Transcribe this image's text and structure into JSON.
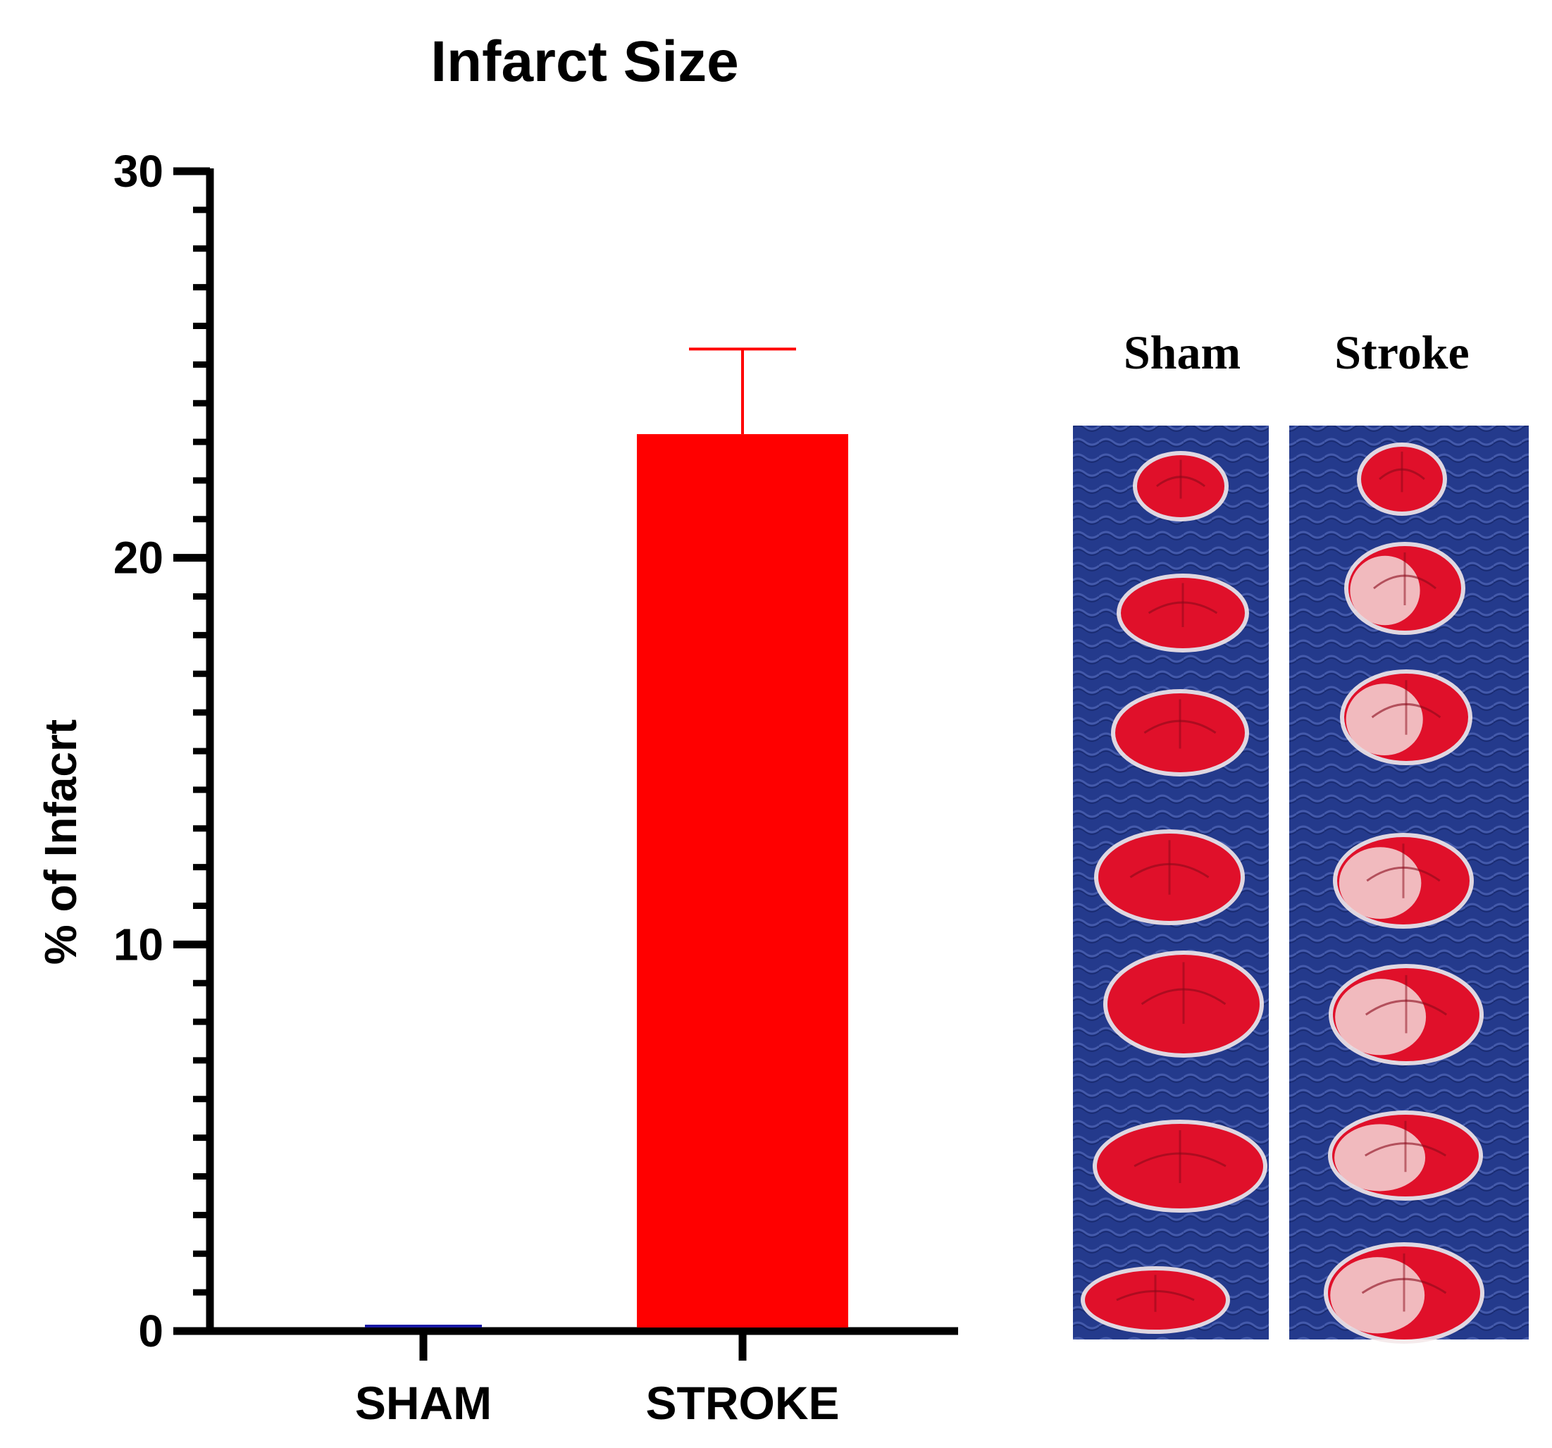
{
  "chart_data": {
    "type": "bar",
    "title": "Infarct Size",
    "xlabel": "",
    "ylabel": "% of Infacrt",
    "categories": [
      "SHAM",
      "STROKE"
    ],
    "values": [
      0,
      23.2
    ],
    "error_upper": [
      0,
      25.4
    ],
    "bar_colors": [
      "#1a1aa6",
      "#ff0000"
    ],
    "ylim": [
      0,
      30
    ],
    "yticks": [
      "0",
      "10",
      "20",
      "30"
    ],
    "minor_ticks_per_major": 10,
    "grid": false
  },
  "photos": {
    "panels": [
      {
        "label": "Sham",
        "slices": 7
      },
      {
        "label": "Stroke",
        "slices": 7
      }
    ],
    "background_color": "#243a8c",
    "tissue_color": "#e0102a",
    "infarct_color": "#f3d8d8"
  }
}
